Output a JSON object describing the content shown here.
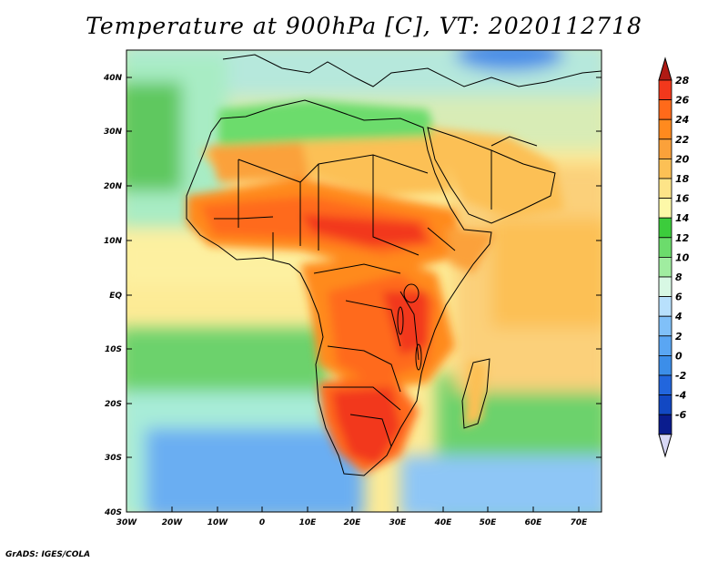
{
  "title": "Temperature at 900hPa [C], VT: 2020112718",
  "credit": "GrADS: IGES/COLA",
  "map": {
    "lat_labels": [
      "40N",
      "30N",
      "20N",
      "10N",
      "EQ",
      "10S",
      "20S",
      "30S",
      "40S"
    ],
    "lon_labels": [
      "30W",
      "20W",
      "10W",
      "0",
      "10E",
      "20E",
      "30E",
      "40E",
      "50E",
      "60E",
      "70E"
    ],
    "extent": {
      "lon": [
        -30,
        75
      ],
      "lat": [
        -40,
        45
      ]
    }
  },
  "colorbar": {
    "values": [
      "28",
      "26",
      "24",
      "22",
      "20",
      "18",
      "16",
      "14",
      "12",
      "10",
      "8",
      "6",
      "4",
      "2",
      "0",
      "-2",
      "-4",
      "-6"
    ],
    "colors": [
      "#f2381c",
      "#ff6a1a",
      "#ff8a1e",
      "#fba13a",
      "#fcc055",
      "#fde488",
      "#fdf8a8",
      "#3ccc3c",
      "#6cdc6c",
      "#a0eda0",
      "#d8f8e4",
      "#b8e0fc",
      "#80c0f8",
      "#5aa6f3",
      "#3c8ee9",
      "#2266dd",
      "#1248c3",
      "#0a1c8e"
    ],
    "top_arrow_color": "#b01a14",
    "bottom_arrow_color": "#d8d8f6"
  }
}
